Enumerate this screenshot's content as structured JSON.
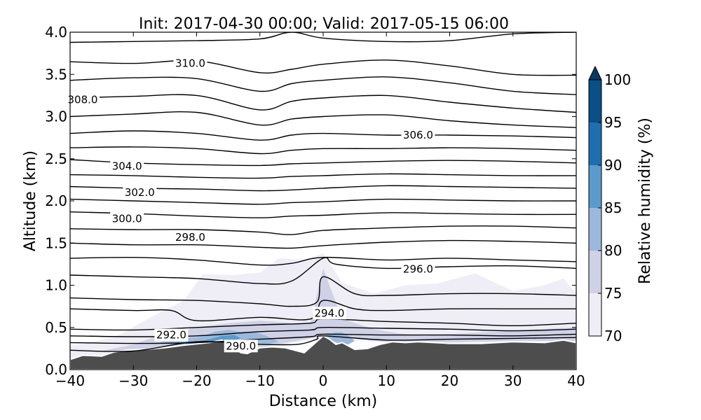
{
  "chart_data": {
    "type": "contour",
    "title": "Init: 2017-04-30 00:00; Valid: 2017-05-15 06:00",
    "xlabel": "Distance (km)",
    "ylabel": "Altitude (km)",
    "xlim": [
      -40,
      40
    ],
    "ylim": [
      0.0,
      4.0
    ],
    "x_ticks": [
      -40,
      -30,
      -20,
      -10,
      0,
      10,
      20,
      30,
      40
    ],
    "x_tick_labels": [
      "−40",
      "−30",
      "−20",
      "−10",
      "0",
      "10",
      "20",
      "30",
      "40"
    ],
    "y_ticks": [
      0.0,
      0.5,
      1.0,
      1.5,
      2.0,
      2.5,
      3.0,
      3.5,
      4.0
    ],
    "y_tick_labels": [
      "0.0",
      "0.5",
      "1.0",
      "1.5",
      "2.0",
      "2.5",
      "3.0",
      "3.5",
      "4.0"
    ],
    "colorbar": {
      "label": "Relative humidity (%)",
      "levels": [
        70,
        75,
        80,
        85,
        90,
        95,
        100
      ],
      "tick_labels": [
        "70",
        "75",
        "80",
        "85",
        "90",
        "95",
        "100"
      ],
      "colors": [
        "#efedf5",
        "#cfd1e6",
        "#9cb8da",
        "#5b9bcb",
        "#1f6fb0",
        "#0b4f86",
        "#083a63"
      ],
      "extend": "max"
    },
    "terrain": {
      "color": "#4d4d4d",
      "x": [
        -40,
        -38,
        -35,
        -33,
        -31,
        -28,
        -25,
        -22,
        -18,
        -16,
        -15,
        -13,
        -12,
        -10,
        -8,
        -6,
        -5,
        -3,
        -1.5,
        0,
        1,
        2,
        3,
        4,
        5,
        7,
        9,
        11,
        13,
        15,
        20,
        25,
        30,
        35,
        38,
        40
      ],
      "y": [
        0.12,
        0.17,
        0.16,
        0.21,
        0.23,
        0.24,
        0.26,
        0.29,
        0.32,
        0.35,
        0.3,
        0.2,
        0.19,
        0.26,
        0.27,
        0.26,
        0.24,
        0.2,
        0.3,
        0.4,
        0.36,
        0.3,
        0.32,
        0.28,
        0.24,
        0.25,
        0.3,
        0.33,
        0.32,
        0.33,
        0.31,
        0.31,
        0.33,
        0.32,
        0.35,
        0.32
      ]
    },
    "theta_contour_labels": [
      {
        "text": "290.0",
        "x": -13.0,
        "y": 0.28
      },
      {
        "text": "292.0",
        "x": -24.0,
        "y": 0.41
      },
      {
        "text": "294.0",
        "x": 1.0,
        "y": 0.67
      },
      {
        "text": "296.0",
        "x": 15.0,
        "y": 1.19
      },
      {
        "text": "298.0",
        "x": -21.0,
        "y": 1.57
      },
      {
        "text": "300.0",
        "x": -31.0,
        "y": 1.79
      },
      {
        "text": "302.0",
        "x": -29.0,
        "y": 2.1
      },
      {
        "text": "304.0",
        "x": -31.0,
        "y": 2.41
      },
      {
        "text": "306.0",
        "x": 15.0,
        "y": 2.78
      },
      {
        "text": "308.0",
        "x": -38.0,
        "y": 3.2
      },
      {
        "text": "310.0",
        "x": -21.0,
        "y": 3.63
      }
    ],
    "theta_contours": [
      {
        "x": [
          -40,
          -30,
          -20,
          -10,
          -5,
          0,
          10,
          20,
          30,
          40
        ],
        "y": [
          3.88,
          3.89,
          3.9,
          3.92,
          4.0,
          3.93,
          3.89,
          3.9,
          3.98,
          4.0
        ]
      },
      {
        "x": [
          -40,
          -30,
          -20,
          -10,
          -5,
          0,
          10,
          20,
          30,
          40
        ],
        "y": [
          3.65,
          3.63,
          3.66,
          3.52,
          3.56,
          3.62,
          3.67,
          3.6,
          3.5,
          3.49
        ]
      },
      {
        "x": [
          -40,
          -30,
          -20,
          -10,
          -5,
          0,
          10,
          20,
          30,
          40
        ],
        "y": [
          3.43,
          3.46,
          3.45,
          3.3,
          3.39,
          3.43,
          3.47,
          3.4,
          3.3,
          3.26
        ]
      },
      {
        "x": [
          -40,
          -30,
          -20,
          -10,
          -5,
          0,
          10,
          20,
          30,
          40
        ],
        "y": [
          3.22,
          3.24,
          3.25,
          3.08,
          3.18,
          3.22,
          3.25,
          3.17,
          3.1,
          3.05
        ]
      },
      {
        "x": [
          -40,
          -30,
          -20,
          -10,
          -5,
          0,
          10,
          20,
          30,
          40
        ],
        "y": [
          3.0,
          3.03,
          3.05,
          2.9,
          2.97,
          3.0,
          3.02,
          2.95,
          2.9,
          2.87
        ]
      },
      {
        "x": [
          -40,
          -30,
          -20,
          -10,
          -5,
          0,
          10,
          20,
          30,
          40
        ],
        "y": [
          2.8,
          2.83,
          2.8,
          2.72,
          2.78,
          2.8,
          2.78,
          2.78,
          2.77,
          2.75
        ]
      },
      {
        "x": [
          -40,
          -30,
          -20,
          -10,
          -5,
          0,
          10,
          20,
          30,
          40
        ],
        "y": [
          2.63,
          2.64,
          2.62,
          2.56,
          2.6,
          2.62,
          2.62,
          2.63,
          2.62,
          2.6
        ]
      },
      {
        "x": [
          -40,
          -30,
          -20,
          -10,
          -5,
          0,
          10,
          20,
          30,
          40
        ],
        "y": [
          2.49,
          2.45,
          2.43,
          2.42,
          2.44,
          2.45,
          2.47,
          2.48,
          2.47,
          2.45
        ]
      },
      {
        "x": [
          -40,
          -30,
          -20,
          -10,
          -5,
          0,
          10,
          20,
          30,
          40
        ],
        "y": [
          2.31,
          2.3,
          2.28,
          2.27,
          2.29,
          2.3,
          2.32,
          2.31,
          2.3,
          2.3
        ]
      },
      {
        "x": [
          -40,
          -30,
          -20,
          -10,
          -5,
          0,
          10,
          20,
          30,
          40
        ],
        "y": [
          2.17,
          2.15,
          2.14,
          2.12,
          2.13,
          2.15,
          2.18,
          2.17,
          2.16,
          2.15
        ]
      },
      {
        "x": [
          -40,
          -30,
          -20,
          -10,
          -5,
          0,
          10,
          20,
          30,
          40
        ],
        "y": [
          2.02,
          2.0,
          1.98,
          1.96,
          1.98,
          1.99,
          2.02,
          2.01,
          2.0,
          2.0
        ]
      },
      {
        "x": [
          -40,
          -30,
          -20,
          -10,
          -5,
          0,
          10,
          20,
          30,
          40
        ],
        "y": [
          1.87,
          1.85,
          1.82,
          1.8,
          1.82,
          1.83,
          1.86,
          1.85,
          1.84,
          1.84
        ]
      },
      {
        "x": [
          -40,
          -30,
          -20,
          -10,
          -5,
          0,
          10,
          20,
          30,
          40
        ],
        "y": [
          1.67,
          1.66,
          1.66,
          1.63,
          1.6,
          1.65,
          1.68,
          1.7,
          1.7,
          1.68
        ]
      },
      {
        "x": [
          -40,
          -30,
          -20,
          -10,
          -5,
          0,
          10,
          20,
          30,
          40
        ],
        "y": [
          1.5,
          1.48,
          1.48,
          1.45,
          1.44,
          1.47,
          1.51,
          1.53,
          1.52,
          1.5
        ]
      },
      {
        "x": [
          -40,
          -30,
          -20,
          -10,
          -5,
          0,
          10,
          20,
          30,
          40
        ],
        "y": [
          1.32,
          1.33,
          1.3,
          1.24,
          1.26,
          1.33,
          1.3,
          1.32,
          1.3,
          1.28
        ]
      },
      {
        "x": [
          -40,
          -30,
          -20,
          -10,
          -5,
          0,
          2,
          10,
          20,
          30,
          40
        ],
        "y": [
          1.12,
          1.1,
          1.08,
          1.02,
          1.05,
          1.32,
          1.25,
          1.2,
          1.22,
          1.23,
          1.2
        ]
      },
      {
        "x": [
          -40,
          -30,
          -20,
          -10,
          -5,
          -1,
          0,
          5,
          10,
          20,
          30,
          40
        ],
        "y": [
          0.85,
          0.83,
          0.82,
          0.78,
          0.75,
          0.8,
          1.1,
          0.9,
          0.88,
          0.9,
          0.9,
          0.88
        ]
      },
      {
        "x": [
          -40,
          -30,
          -24,
          -20,
          -10,
          -2,
          0,
          5,
          10,
          20,
          30,
          40
        ],
        "y": [
          0.72,
          0.7,
          0.7,
          0.58,
          0.62,
          0.6,
          0.82,
          0.72,
          0.7,
          0.72,
          0.72,
          0.72
        ]
      },
      {
        "x": [
          -40,
          -30,
          -20,
          -10,
          -2,
          0,
          10,
          20,
          30,
          40
        ],
        "y": [
          0.48,
          0.47,
          0.5,
          0.53,
          0.55,
          0.6,
          0.57,
          0.55,
          0.52,
          0.55
        ]
      },
      {
        "x": [
          -40,
          -30,
          -20,
          -10,
          -2,
          0,
          10,
          20,
          30,
          40
        ],
        "y": [
          0.4,
          0.39,
          0.4,
          0.45,
          0.47,
          0.5,
          0.49,
          0.48,
          0.46,
          0.48
        ]
      },
      {
        "x": [
          -40,
          -30,
          -20,
          -10,
          -2,
          0,
          10,
          20,
          30,
          40
        ],
        "y": [
          0.32,
          0.31,
          0.32,
          0.36,
          0.39,
          0.42,
          0.41,
          0.41,
          0.4,
          0.42
        ]
      },
      {
        "x": [
          -40,
          -30,
          -20,
          -10,
          -4,
          -1,
          0,
          10,
          20,
          30,
          40
        ],
        "y": [
          0.23,
          0.22,
          0.33,
          0.3,
          0.3,
          0.36,
          0.4,
          0.35,
          0.36,
          0.37,
          0.38
        ]
      }
    ],
    "rh_regions": [
      {
        "level": 70,
        "x": [
          -40,
          -33,
          -27,
          -22,
          -19,
          -14,
          -10,
          -7,
          -3,
          0,
          3,
          8,
          13,
          18,
          24,
          30,
          35,
          38,
          40,
          40,
          30,
          20,
          10,
          0,
          -10,
          -20,
          -30,
          -40
        ],
        "y": [
          0.28,
          0.38,
          0.63,
          0.82,
          1.13,
          1.12,
          1.15,
          1.32,
          1.3,
          1.38,
          1.03,
          0.9,
          1.0,
          1.02,
          1.14,
          0.93,
          1.0,
          1.08,
          0.9,
          0.3,
          0.33,
          0.32,
          0.32,
          0.38,
          0.25,
          0.3,
          0.23,
          0.12
        ]
      },
      {
        "level": 75,
        "x": [
          -35,
          -30,
          -25,
          -20,
          -15,
          -10,
          -5,
          -2,
          0,
          3,
          8,
          12,
          16,
          22,
          28,
          34,
          40,
          40,
          30,
          20,
          10,
          0,
          -10,
          -20,
          -30
        ],
        "y": [
          0.22,
          0.3,
          0.43,
          0.5,
          0.55,
          0.58,
          0.55,
          0.56,
          1.2,
          0.6,
          0.48,
          0.43,
          0.4,
          0.43,
          0.45,
          0.48,
          0.5,
          0.34,
          0.34,
          0.32,
          0.33,
          0.4,
          0.26,
          0.3,
          0.23
        ]
      },
      {
        "level": 80,
        "x": [
          -26,
          -23,
          -20,
          -17,
          -15,
          -13,
          -11,
          -9,
          -7,
          -9,
          -11,
          -14,
          -17,
          -20,
          -23
        ],
        "y": [
          0.32,
          0.37,
          0.38,
          0.45,
          0.47,
          0.45,
          0.45,
          0.4,
          0.33,
          0.3,
          0.31,
          0.31,
          0.32,
          0.3,
          0.29
        ]
      },
      {
        "level": 80,
        "x": [
          0,
          1,
          2,
          3,
          4,
          5,
          4,
          3,
          2,
          1
        ],
        "y": [
          0.4,
          0.42,
          0.44,
          0.44,
          0.4,
          0.34,
          0.3,
          0.3,
          0.32,
          0.36
        ]
      },
      {
        "level": 85,
        "x": [
          -22,
          -20,
          -18,
          -16,
          -14,
          -13,
          -15,
          -17,
          -19,
          -21
        ],
        "y": [
          0.31,
          0.33,
          0.36,
          0.4,
          0.41,
          0.37,
          0.33,
          0.32,
          0.31,
          0.3
        ]
      }
    ]
  }
}
